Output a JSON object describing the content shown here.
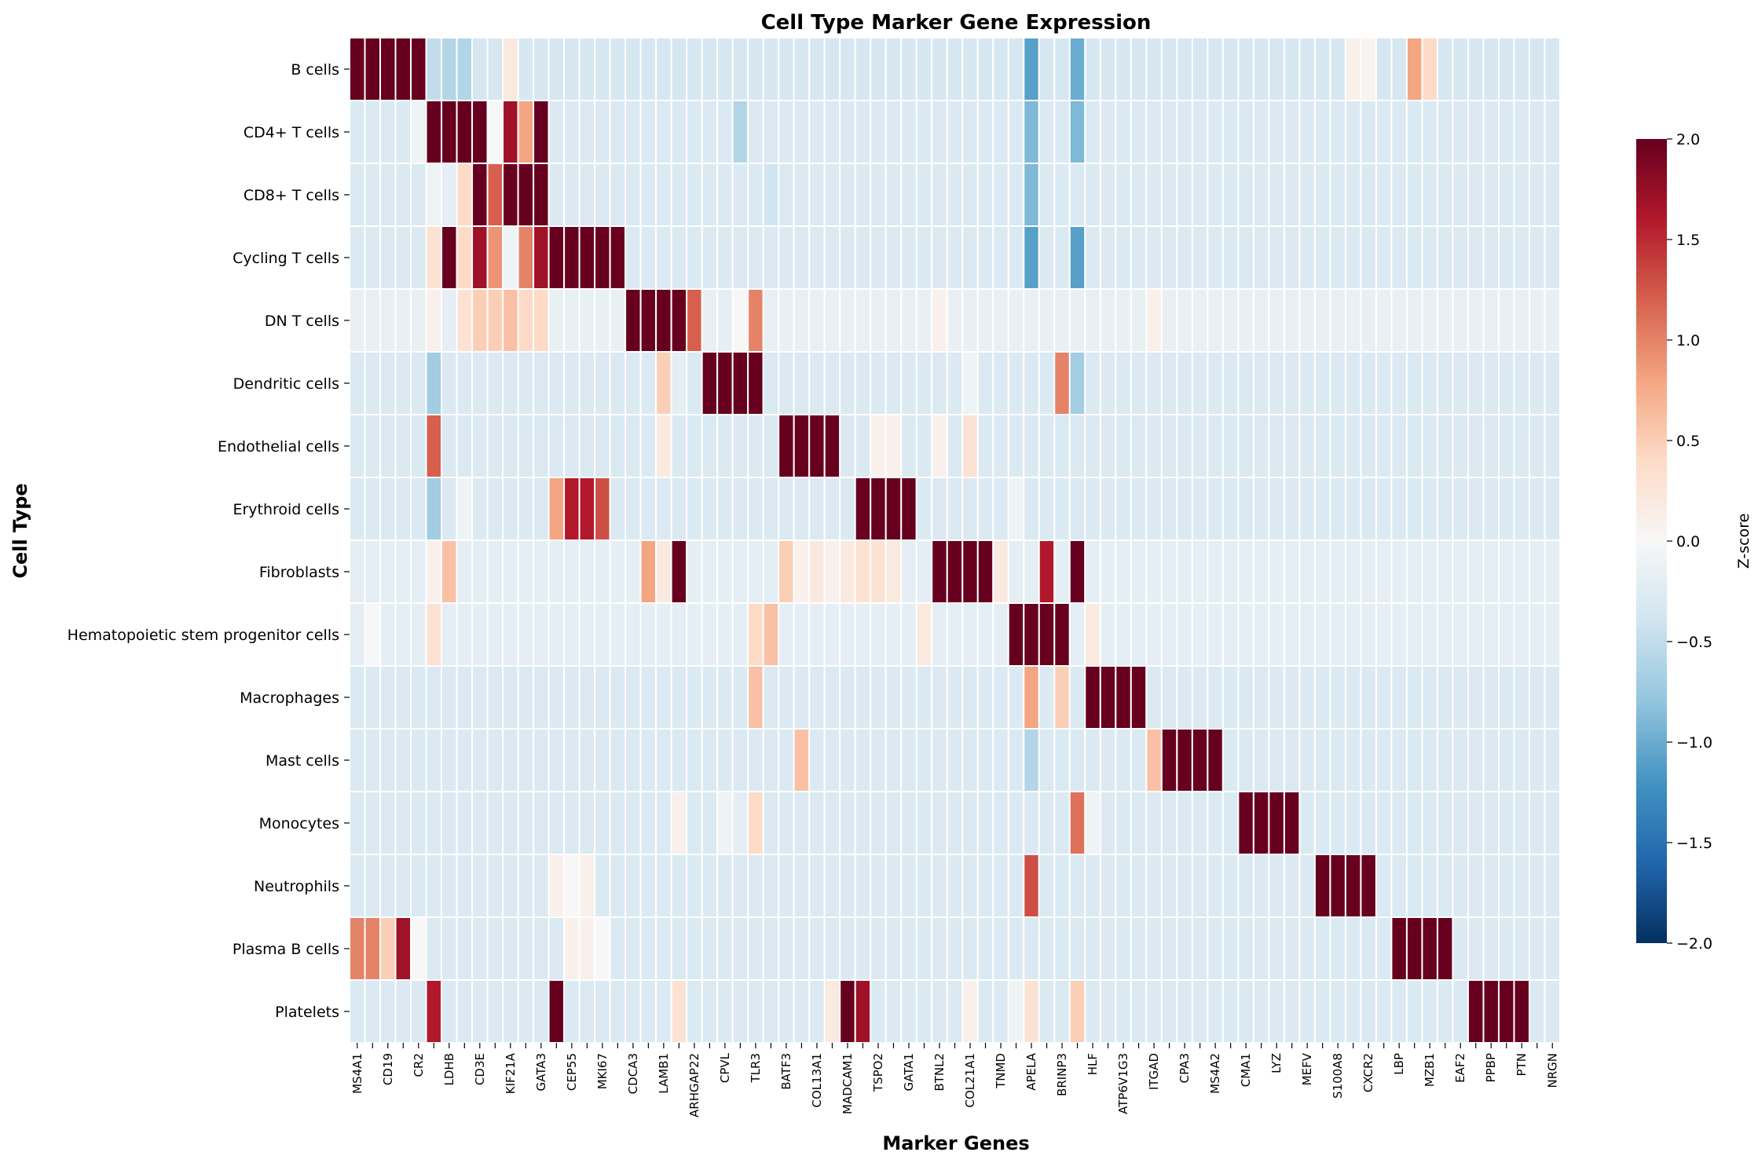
{
  "chart_data": {
    "type": "heatmap",
    "title": "Cell Type Marker Gene Expression",
    "xlabel": "Marker Genes",
    "ylabel": "Cell Type",
    "colorbar": {
      "label": "Z-score",
      "range": [
        -2.0,
        2.0
      ],
      "ticks": [
        "2.0",
        "1.5",
        "1.0",
        "0.5",
        "0.0",
        "−0.5",
        "−1.0",
        "−1.5",
        "−2.0"
      ],
      "colormap": "RdBu_r",
      "colors": [
        "#053061",
        "#2166ac",
        "#4393c3",
        "#92c5de",
        "#d1e5f0",
        "#f7f7f7",
        "#fddbc7",
        "#f4a582",
        "#d6604d",
        "#b2182b",
        "#67001f"
      ]
    },
    "rows": [
      "B cells",
      "CD4+ T cells",
      "CD8+ T cells",
      "Cycling T cells",
      "DN T cells",
      "Dendritic cells",
      "Endothelial cells",
      "Erythroid cells",
      "Fibroblasts",
      "Hematopoietic stem progenitor cells",
      "Macrophages",
      "Mast cells",
      "Monocytes",
      "Neutrophils",
      "Plasma B cells",
      "Platelets"
    ],
    "columns": [
      "MS4A1",
      "",
      "CD19",
      "",
      "CR2",
      "",
      "LDHB",
      "",
      "CD3E",
      "",
      "KIF21A",
      "",
      "GATA3",
      "",
      "CEP55",
      "",
      "MKI67",
      "",
      "CDCA3",
      "",
      "LAMB1",
      "",
      "ARHGAP22",
      "",
      "CPVL",
      "",
      "TLR3",
      "",
      "BATF3",
      "",
      "COL13A1",
      "",
      "MADCAM1",
      "",
      "TSPO2",
      "",
      "GATA1",
      "",
      "BTNL2",
      "",
      "COL21A1",
      "",
      "TNMD",
      "",
      "APELA",
      "",
      "BRINP3",
      "",
      "HLF",
      "",
      "ATP6V1G3",
      "",
      "ITGAD",
      "",
      "CPA3",
      "",
      "MS4A2",
      "",
      "CMA1",
      "",
      "LYZ",
      "",
      "MEFV",
      "",
      "S100A8",
      "",
      "CXCR2",
      "",
      "LBP",
      "",
      "MZB1",
      "",
      "EAF2",
      "",
      "PPBP",
      "",
      "PTN",
      "",
      "NRGN"
    ],
    "baseline_z": -0.3,
    "row_baselines": [
      -0.35,
      -0.3,
      -0.3,
      -0.3,
      -0.15,
      -0.3,
      -0.3,
      -0.3,
      -0.2,
      -0.2,
      -0.3,
      -0.3,
      -0.3,
      -0.3,
      -0.3,
      -0.3
    ],
    "high_blocks": [
      {
        "row": 0,
        "cols": [
          0,
          4
        ],
        "z": 2.0
      },
      {
        "row": 1,
        "cols": [
          5,
          8
        ],
        "z": 2.0
      },
      {
        "row": 2,
        "cols": [
          8,
          12
        ],
        "z": 2.0
      },
      {
        "row": 3,
        "cols": [
          13,
          17
        ],
        "z": 2.0
      },
      {
        "row": 4,
        "cols": [
          18,
          21
        ],
        "z": 2.0
      },
      {
        "row": 5,
        "cols": [
          23,
          26
        ],
        "z": 2.0
      },
      {
        "row": 6,
        "cols": [
          28,
          31
        ],
        "z": 2.0
      },
      {
        "row": 7,
        "cols": [
          33,
          36
        ],
        "z": 2.0
      },
      {
        "row": 8,
        "cols": [
          38,
          41
        ],
        "z": 2.0
      },
      {
        "row": 9,
        "cols": [
          43,
          46
        ],
        "z": 2.0
      },
      {
        "row": 10,
        "cols": [
          48,
          51
        ],
        "z": 2.0
      },
      {
        "row": 11,
        "cols": [
          53,
          56
        ],
        "z": 2.0
      },
      {
        "row": 12,
        "cols": [
          58,
          61
        ],
        "z": 2.0
      },
      {
        "row": 13,
        "cols": [
          63,
          66
        ],
        "z": 2.0
      },
      {
        "row": 14,
        "cols": [
          68,
          71
        ],
        "z": 2.0
      },
      {
        "row": 15,
        "cols": [
          73,
          76
        ],
        "z": 2.0
      }
    ],
    "cell_values": [
      [
        0,
        10,
        0.2
      ],
      [
        0,
        44,
        -1.1
      ],
      [
        0,
        47,
        -1.0
      ],
      [
        0,
        65,
        0.1
      ],
      [
        0,
        66,
        0.05
      ],
      [
        0,
        69,
        0.8
      ],
      [
        0,
        70,
        0.4
      ],
      [
        0,
        5,
        -0.5
      ],
      [
        0,
        6,
        -0.6
      ],
      [
        0,
        7,
        -0.6
      ],
      [
        1,
        9,
        0.0
      ],
      [
        1,
        10,
        1.7
      ],
      [
        1,
        11,
        0.8
      ],
      [
        1,
        12,
        2.0
      ],
      [
        1,
        44,
        -0.9
      ],
      [
        1,
        47,
        -0.9
      ],
      [
        1,
        4,
        -0.1
      ],
      [
        1,
        25,
        -0.6
      ],
      [
        2,
        5,
        -0.1
      ],
      [
        2,
        6,
        -0.2
      ],
      [
        2,
        7,
        0.4
      ],
      [
        2,
        8,
        2.0
      ],
      [
        2,
        9,
        1.2
      ],
      [
        2,
        10,
        2.0
      ],
      [
        2,
        44,
        -0.9
      ],
      [
        2,
        27,
        -0.4
      ],
      [
        3,
        5,
        0.3
      ],
      [
        3,
        6,
        2.0
      ],
      [
        3,
        7,
        0.4
      ],
      [
        3,
        8,
        1.7
      ],
      [
        3,
        9,
        0.9
      ],
      [
        3,
        10,
        -0.1
      ],
      [
        3,
        11,
        1.0
      ],
      [
        3,
        12,
        1.7
      ],
      [
        3,
        44,
        -1.1
      ],
      [
        3,
        47,
        -1.1
      ],
      [
        4,
        5,
        0.1
      ],
      [
        4,
        6,
        -0.2
      ],
      [
        4,
        7,
        0.3
      ],
      [
        4,
        8,
        0.5
      ],
      [
        4,
        9,
        0.5
      ],
      [
        4,
        10,
        0.6
      ],
      [
        4,
        11,
        0.4
      ],
      [
        4,
        12,
        0.4
      ],
      [
        4,
        22,
        1.2
      ],
      [
        4,
        24,
        -0.2
      ],
      [
        4,
        25,
        0.0
      ],
      [
        4,
        26,
        1.0
      ],
      [
        4,
        38,
        0.1
      ],
      [
        4,
        52,
        0.1
      ],
      [
        5,
        5,
        -0.7
      ],
      [
        5,
        20,
        0.5
      ],
      [
        5,
        21,
        -0.2
      ],
      [
        5,
        22,
        -0.3
      ],
      [
        5,
        46,
        1.0
      ],
      [
        5,
        47,
        -0.7
      ],
      [
        5,
        40,
        -0.1
      ],
      [
        6,
        5,
        1.2
      ],
      [
        6,
        20,
        0.2
      ],
      [
        6,
        38,
        0.1
      ],
      [
        6,
        40,
        0.3
      ],
      [
        6,
        34,
        0.1
      ],
      [
        6,
        35,
        0.1
      ],
      [
        7,
        5,
        -0.7
      ],
      [
        7,
        7,
        -0.1
      ],
      [
        7,
        13,
        0.8
      ],
      [
        7,
        14,
        1.6
      ],
      [
        7,
        15,
        1.6
      ],
      [
        7,
        16,
        1.3
      ],
      [
        7,
        43,
        -0.1
      ],
      [
        8,
        5,
        0.1
      ],
      [
        8,
        6,
        0.6
      ],
      [
        8,
        19,
        0.8
      ],
      [
        8,
        20,
        0.2
      ],
      [
        8,
        21,
        2.0
      ],
      [
        8,
        28,
        0.5
      ],
      [
        8,
        29,
        0.1
      ],
      [
        8,
        30,
        0.2
      ],
      [
        8,
        31,
        0.1
      ],
      [
        8,
        32,
        0.2
      ],
      [
        8,
        33,
        0.3
      ],
      [
        8,
        34,
        0.3
      ],
      [
        8,
        35,
        0.2
      ],
      [
        8,
        42,
        0.2
      ],
      [
        8,
        45,
        1.6
      ],
      [
        8,
        47,
        2.0
      ],
      [
        9,
        1,
        0.0
      ],
      [
        9,
        5,
        0.3
      ],
      [
        9,
        26,
        0.4
      ],
      [
        9,
        27,
        0.6
      ],
      [
        9,
        37,
        0.2
      ],
      [
        9,
        48,
        0.2
      ],
      [
        10,
        26,
        0.6
      ],
      [
        10,
        44,
        0.8
      ],
      [
        10,
        46,
        0.5
      ],
      [
        11,
        29,
        0.6
      ],
      [
        11,
        52,
        0.6
      ],
      [
        11,
        44,
        -0.6
      ],
      [
        12,
        21,
        0.1
      ],
      [
        12,
        26,
        0.4
      ],
      [
        12,
        24,
        -0.1
      ],
      [
        12,
        25,
        -0.2
      ],
      [
        12,
        47,
        1.1
      ],
      [
        12,
        48,
        -0.1
      ],
      [
        13,
        13,
        0.1
      ],
      [
        13,
        14,
        0.0
      ],
      [
        13,
        15,
        0.1
      ],
      [
        13,
        44,
        1.3
      ],
      [
        14,
        0,
        1.0
      ],
      [
        14,
        1,
        1.0
      ],
      [
        14,
        2,
        0.5
      ],
      [
        14,
        3,
        1.7
      ],
      [
        14,
        4,
        0.0
      ],
      [
        14,
        14,
        0.1
      ],
      [
        14,
        15,
        0.1
      ],
      [
        14,
        16,
        0.0
      ],
      [
        15,
        5,
        1.6
      ],
      [
        15,
        13,
        2.0
      ],
      [
        15,
        21,
        0.3
      ],
      [
        15,
        31,
        0.2
      ],
      [
        15,
        32,
        2.0
      ],
      [
        15,
        33,
        1.7
      ],
      [
        15,
        40,
        0.1
      ],
      [
        15,
        43,
        -0.1
      ],
      [
        15,
        44,
        0.3
      ],
      [
        15,
        47,
        0.5
      ]
    ]
  }
}
